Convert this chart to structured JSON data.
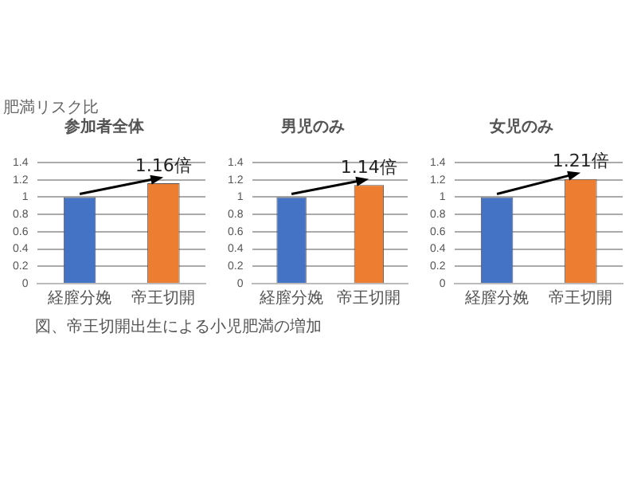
{
  "chart_data": [
    {
      "type": "bar",
      "title": "参加者全体",
      "ylabel": "肥満リスク比",
      "categories": [
        "経膣分娩",
        "帝王切開"
      ],
      "values": [
        1,
        1.16
      ],
      "colors": [
        "#4472c4",
        "#ed7d31"
      ],
      "ylim": [
        0,
        1.4
      ],
      "yticks": [
        0,
        0.2,
        0.4,
        0.6,
        0.8,
        1,
        1.2,
        1.4
      ],
      "grid": "y",
      "legend": false,
      "annotations": [
        {
          "text": "1.16倍",
          "x": "帝王切開",
          "y": 1.16
        },
        "図、帝王切開出生による小児肥満の増加"
      ]
    },
    {
      "type": "bar",
      "title": "男児のみ",
      "categories": [
        "経膣分娩",
        "帝王切開"
      ],
      "values": [
        1,
        1.14
      ],
      "colors": [
        "#4472c4",
        "#ed7d31"
      ],
      "ylim": [
        0,
        1.4
      ],
      "yticks": [
        0,
        0.2,
        0.4,
        0.6,
        0.8,
        1,
        1.2,
        1.4
      ],
      "grid": "y",
      "legend": false,
      "annotations": [
        {
          "text": "1.14倍",
          "x": "帝王切開",
          "y": 1.14
        }
      ]
    },
    {
      "type": "bar",
      "title": "女児のみ",
      "categories": [
        "経膣分娩",
        "帝王切開"
      ],
      "values": [
        1,
        1.21
      ],
      "colors": [
        "#4472c4",
        "#ed7d31"
      ],
      "ylim": [
        0,
        1.4
      ],
      "yticks": [
        0,
        0.2,
        0.4,
        0.6,
        0.8,
        1,
        1.2,
        1.4
      ],
      "grid": "y",
      "legend": false,
      "annotations": [
        {
          "text": "1.21倍",
          "x": "帝王切開",
          "y": 1.21
        }
      ]
    }
  ]
}
